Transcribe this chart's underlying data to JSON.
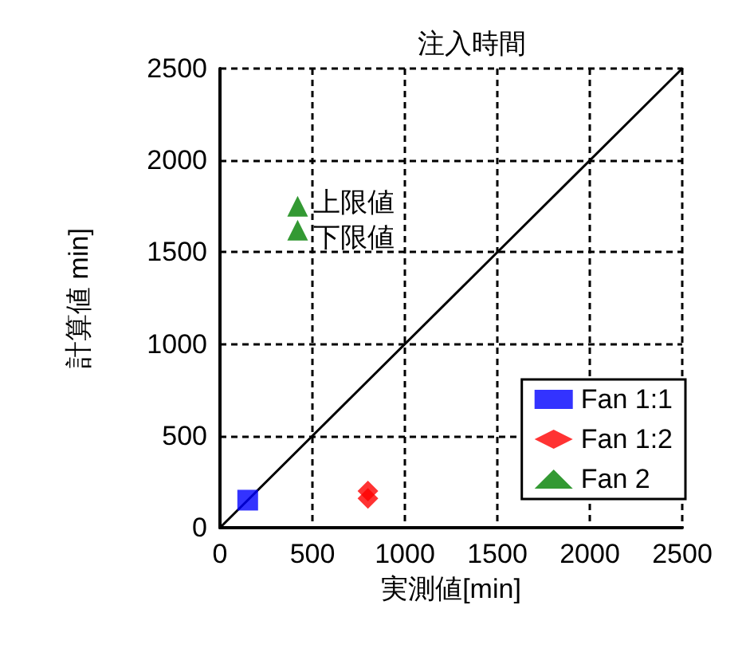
{
  "chart_data": {
    "type": "scatter",
    "title": "注入時間",
    "xlabel": "実測値[min]",
    "ylabel": "計算値 min]",
    "xlim": [
      0,
      2500
    ],
    "xticks": [
      0,
      500,
      1000,
      1500,
      2000,
      2500
    ],
    "ylim": [
      0,
      2500
    ],
    "yticks": [
      0,
      500,
      1000,
      1500,
      2000,
      2500
    ],
    "grid": true,
    "legend": "bottom right",
    "series": [
      {
        "name": "Fan 1:1",
        "color": "#0000ff",
        "marker": "square",
        "x": [
          150
        ],
        "values": [
          150
        ]
      },
      {
        "name": "Fan 1:2",
        "color": "#ff0000",
        "marker": "diamond",
        "x": [
          800,
          800
        ],
        "values": [
          200,
          160
        ]
      },
      {
        "name": "Fan 2",
        "color": "#008000",
        "marker": "triangle",
        "x": [
          420,
          420
        ],
        "values": [
          1750,
          1620
        ]
      },
      {
        "type": "line",
        "color": "#000000",
        "marker": "none",
        "x": [
          0,
          2500
        ],
        "values": [
          0,
          2500
        ]
      }
    ],
    "annotations": [
      {
        "text": "上限値",
        "x": 420,
        "y": 1750
      },
      {
        "text": "下限値",
        "x": 420,
        "y": 1620
      }
    ]
  }
}
